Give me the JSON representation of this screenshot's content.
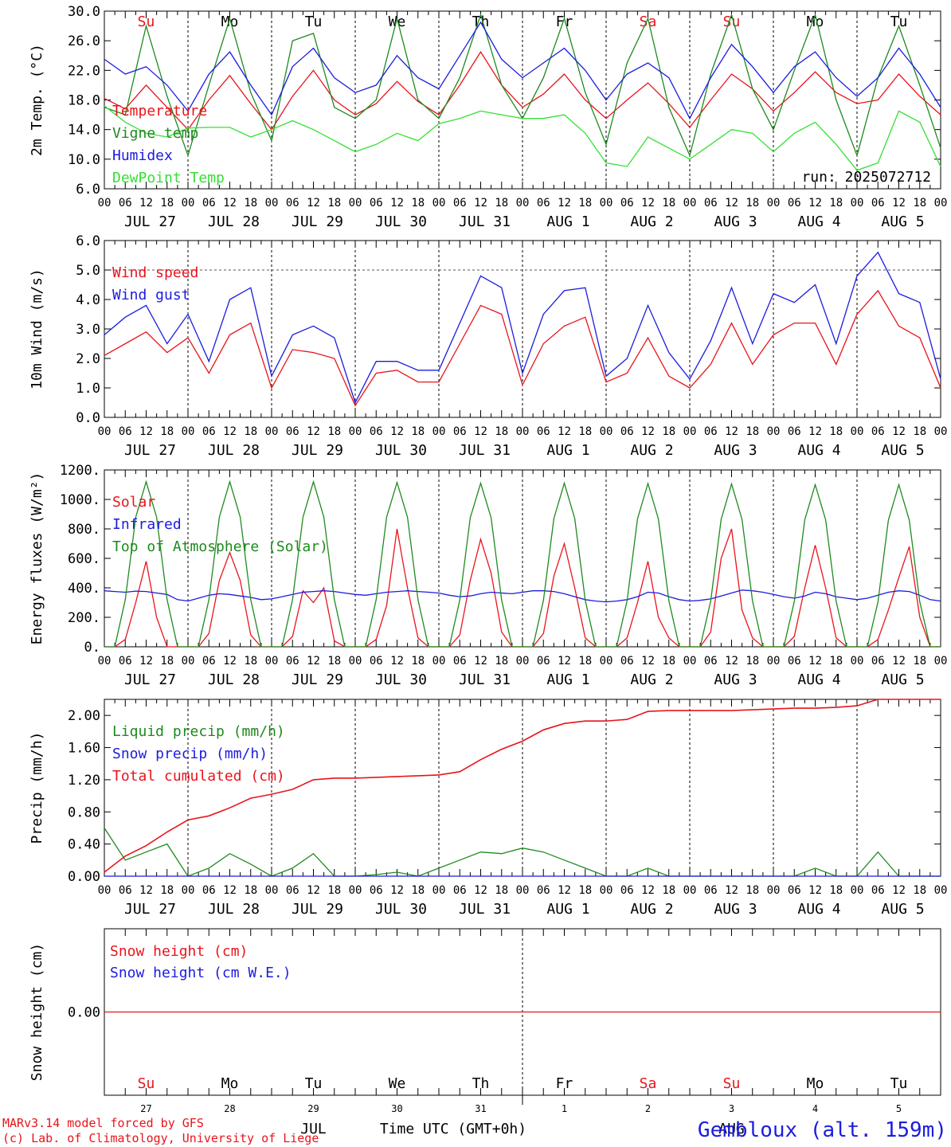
{
  "colors": {
    "red": "#e8141c",
    "green": "#1e8a1e",
    "blue": "#1c1ce0",
    "lightgreen": "#34e034",
    "black": "#000000"
  },
  "days": [
    {
      "abbr": "Su",
      "weekend": true,
      "date": "JUL 27",
      "num": "27"
    },
    {
      "abbr": "Mo",
      "weekend": false,
      "date": "JUL 28",
      "num": "28"
    },
    {
      "abbr": "Tu",
      "weekend": false,
      "date": "JUL 29",
      "num": "29"
    },
    {
      "abbr": "We",
      "weekend": false,
      "date": "JUL 30",
      "num": "30"
    },
    {
      "abbr": "Th",
      "weekend": false,
      "date": "JUL 31",
      "num": "31"
    },
    {
      "abbr": "Fr",
      "weekend": false,
      "date": "AUG  1",
      "num": "1"
    },
    {
      "abbr": "Sa",
      "weekend": true,
      "date": "AUG  2",
      "num": "2"
    },
    {
      "abbr": "Su",
      "weekend": true,
      "date": "AUG  3",
      "num": "3"
    },
    {
      "abbr": "Mo",
      "weekend": false,
      "date": "AUG  4",
      "num": "4"
    },
    {
      "abbr": "Tu",
      "weekend": false,
      "date": "AUG  5",
      "num": "5"
    }
  ],
  "hour_labels": [
    "00",
    "06",
    "12",
    "18"
  ],
  "final_hour_label": "00",
  "footer": {
    "month_jul": "JUL",
    "month_aug": "AUG",
    "time_label": "Time UTC (GMT+0h)",
    "model_line1": "MARv3.14 model forced by GFS",
    "model_line2": "(c) Lab. of Climatology, University of Liege",
    "station": "Gembloux (alt. 159m)"
  },
  "chart_data": [
    {
      "type": "line",
      "ylabel": "2m Temp. (°C)",
      "ylim": [
        6,
        30
      ],
      "yticks": [
        "6.0",
        "10.0",
        "14.0",
        "18.0",
        "22.0",
        "26.0",
        "30.0"
      ],
      "annotation": "run: 2025072712",
      "x_hours": [
        0,
        6,
        12,
        18,
        24,
        30,
        36,
        42,
        48,
        54,
        60,
        66,
        72,
        78,
        84,
        90,
        96,
        102,
        108,
        114,
        120,
        126,
        132,
        138,
        144,
        150,
        156,
        162,
        168,
        174,
        180,
        186,
        192,
        198,
        204,
        210,
        216,
        222,
        228,
        234,
        240
      ],
      "series": [
        {
          "name": "Temperature",
          "color": "red",
          "values": [
            18.2,
            16.8,
            20.0,
            17.0,
            14.0,
            18.0,
            21.3,
            17.5,
            14.0,
            18.5,
            22.0,
            18.0,
            16.0,
            17.5,
            20.5,
            17.8,
            16.0,
            20.0,
            24.5,
            20.0,
            17.0,
            18.8,
            21.5,
            18.0,
            15.5,
            18.0,
            20.3,
            17.5,
            14.3,
            18.0,
            21.5,
            19.5,
            16.5,
            19.0,
            21.8,
            19.0,
            17.5,
            18.0,
            21.5,
            18.5,
            16.0
          ]
        },
        {
          "name": "Vigne temp",
          "color": "green",
          "values": [
            17.0,
            16.0,
            28.0,
            18.5,
            10.5,
            20.0,
            29.0,
            19.0,
            12.5,
            26.0,
            27.0,
            17.0,
            15.5,
            18.0,
            29.0,
            18.0,
            15.5,
            21.0,
            29.5,
            20.0,
            15.5,
            21.0,
            29.0,
            19.0,
            12.0,
            23.0,
            29.0,
            17.0,
            10.5,
            21.5,
            29.5,
            19.5,
            14.0,
            22.0,
            29.5,
            18.0,
            10.5,
            21.0,
            28.0,
            20.0,
            11.5
          ]
        },
        {
          "name": "Humidex",
          "color": "blue",
          "values": [
            23.5,
            21.5,
            22.5,
            20.0,
            16.5,
            21.5,
            24.5,
            20.0,
            16.0,
            22.5,
            25.0,
            21.0,
            19.0,
            20.0,
            24.0,
            21.0,
            19.5,
            24.0,
            28.5,
            23.5,
            21.0,
            23.0,
            25.0,
            22.0,
            18.0,
            21.5,
            23.0,
            21.0,
            15.5,
            21.0,
            25.5,
            22.5,
            19.0,
            22.5,
            24.5,
            21.0,
            18.5,
            21.0,
            25.0,
            21.5,
            17.0
          ]
        },
        {
          "name": "DewPoint Temp",
          "color": "lightgreen",
          "values": [
            17.2,
            15.0,
            13.5,
            13.0,
            14.2,
            14.3,
            14.3,
            13.0,
            14.0,
            15.2,
            14.0,
            12.5,
            11.0,
            12.0,
            13.5,
            12.5,
            14.8,
            15.5,
            16.5,
            16.0,
            15.5,
            15.5,
            16.0,
            13.5,
            9.5,
            9.0,
            13.0,
            11.5,
            10.0,
            12.0,
            14.0,
            13.5,
            11.0,
            13.5,
            15.0,
            12.0,
            8.5,
            9.5,
            16.5,
            15.0,
            9.0
          ]
        }
      ]
    },
    {
      "type": "line",
      "ylabel": "10m Wind (m/s)",
      "ylim": [
        0,
        6
      ],
      "yticks": [
        "0.0",
        "1.0",
        "2.0",
        "3.0",
        "4.0",
        "5.0",
        "6.0"
      ],
      "reference_line": 5,
      "x_hours": [
        0,
        6,
        12,
        18,
        24,
        30,
        36,
        42,
        48,
        54,
        60,
        66,
        72,
        78,
        84,
        90,
        96,
        102,
        108,
        114,
        120,
        126,
        132,
        138,
        144,
        150,
        156,
        162,
        168,
        174,
        180,
        186,
        192,
        198,
        204,
        210,
        216,
        222,
        228,
        234,
        240
      ],
      "series": [
        {
          "name": "Wind speed",
          "color": "red",
          "values": [
            2.1,
            2.5,
            2.9,
            2.2,
            2.7,
            1.5,
            2.8,
            3.2,
            1.0,
            2.3,
            2.2,
            2.0,
            0.4,
            1.5,
            1.6,
            1.2,
            1.2,
            2.5,
            3.8,
            3.5,
            1.1,
            2.5,
            3.1,
            3.4,
            1.2,
            1.5,
            2.7,
            1.4,
            1.0,
            1.8,
            3.2,
            1.8,
            2.8,
            3.2,
            3.2,
            1.8,
            3.5,
            4.3,
            3.1,
            2.7,
            1.0
          ]
        },
        {
          "name": "Wind gust",
          "color": "blue",
          "values": [
            2.8,
            3.4,
            3.8,
            2.5,
            3.5,
            1.9,
            4.0,
            4.4,
            1.4,
            2.8,
            3.1,
            2.7,
            0.5,
            1.9,
            1.9,
            1.6,
            1.6,
            3.2,
            4.8,
            4.4,
            1.5,
            3.5,
            4.3,
            4.4,
            1.4,
            2.0,
            3.8,
            2.2,
            1.3,
            2.6,
            4.4,
            2.5,
            4.2,
            3.9,
            4.5,
            2.5,
            4.8,
            5.6,
            4.2,
            3.9,
            1.3
          ]
        }
      ]
    },
    {
      "type": "line",
      "ylabel": "Energy fluxes (W/m²)",
      "ylim": [
        0,
        1200
      ],
      "yticks": [
        "0.",
        "200.",
        "400.",
        "600.",
        "800.",
        "1000.",
        "1200."
      ],
      "x_hours": [
        0,
        3,
        6,
        9,
        12,
        15,
        18,
        21,
        24,
        27,
        30,
        33,
        36,
        39,
        42,
        45,
        48,
        51,
        54,
        57,
        60,
        63,
        66,
        69,
        72,
        75,
        78,
        81,
        84,
        87,
        90,
        93,
        96,
        99,
        102,
        105,
        108,
        111,
        114,
        117,
        120,
        123,
        126,
        129,
        132,
        135,
        138,
        141,
        144,
        147,
        150,
        153,
        156,
        159,
        162,
        165,
        168,
        171,
        174,
        177,
        180,
        183,
        186,
        189,
        192,
        195,
        198,
        201,
        204,
        207,
        210,
        213,
        216,
        219,
        222,
        225,
        228,
        231,
        234,
        237,
        240
      ],
      "series": [
        {
          "name": "Solar",
          "color": "red",
          "values": [
            0,
            0,
            50,
            300,
            580,
            200,
            0,
            0,
            0,
            0,
            90,
            450,
            640,
            450,
            80,
            0,
            0,
            0,
            70,
            380,
            300,
            400,
            40,
            0,
            0,
            0,
            50,
            280,
            800,
            400,
            60,
            0,
            0,
            0,
            80,
            450,
            730,
            500,
            100,
            0,
            0,
            0,
            90,
            480,
            700,
            400,
            60,
            0,
            0,
            0,
            60,
            300,
            580,
            200,
            60,
            0,
            0,
            0,
            100,
            600,
            800,
            250,
            60,
            0,
            0,
            0,
            70,
            400,
            690,
            400,
            60,
            0,
            0,
            0,
            50,
            250,
            470,
            680,
            200,
            0,
            0
          ]
        },
        {
          "name": "Infrared",
          "color": "blue",
          "values": [
            380,
            375,
            370,
            378,
            375,
            365,
            355,
            320,
            310,
            330,
            350,
            360,
            355,
            345,
            335,
            320,
            325,
            340,
            355,
            370,
            375,
            380,
            375,
            365,
            355,
            350,
            360,
            370,
            375,
            380,
            375,
            370,
            365,
            350,
            340,
            345,
            360,
            370,
            365,
            360,
            370,
            380,
            380,
            375,
            360,
            340,
            320,
            310,
            305,
            310,
            320,
            340,
            370,
            365,
            340,
            320,
            310,
            315,
            325,
            345,
            365,
            385,
            380,
            370,
            355,
            340,
            330,
            345,
            370,
            360,
            340,
            330,
            320,
            330,
            350,
            370,
            380,
            375,
            350,
            320,
            310
          ]
        },
        {
          "name": "Top of Atmosphere (Solar)",
          "color": "green",
          "values": [
            0,
            0,
            320,
            880,
            1120,
            880,
            320,
            0,
            0,
            0,
            320,
            880,
            1120,
            880,
            320,
            0,
            0,
            0,
            320,
            880,
            1120,
            880,
            320,
            0,
            0,
            0,
            320,
            880,
            1115,
            880,
            320,
            0,
            0,
            0,
            318,
            875,
            1110,
            875,
            318,
            0,
            0,
            0,
            315,
            870,
            1110,
            870,
            315,
            0,
            0,
            0,
            312,
            868,
            1108,
            868,
            312,
            0,
            0,
            0,
            310,
            865,
            1105,
            865,
            310,
            0,
            0,
            0,
            308,
            862,
            1100,
            862,
            308,
            0,
            0,
            0,
            305,
            860,
            1100,
            860,
            305,
            0,
            0
          ]
        }
      ]
    },
    {
      "type": "line",
      "ylabel": "Precip (mm/h)",
      "ylim": [
        0,
        2.2
      ],
      "yticks": [
        "0.00",
        "0.40",
        "0.80",
        "1.20",
        "1.60",
        "2.00"
      ],
      "x_hours": [
        0,
        6,
        12,
        18,
        24,
        30,
        36,
        42,
        48,
        54,
        60,
        66,
        72,
        78,
        84,
        90,
        96,
        102,
        108,
        114,
        120,
        126,
        132,
        138,
        144,
        150,
        156,
        162,
        168,
        174,
        180,
        186,
        192,
        198,
        204,
        210,
        216,
        222,
        228,
        234,
        240
      ],
      "series": [
        {
          "name": "Liquid precip (mm/h)",
          "color": "green",
          "values": [
            0.6,
            0.2,
            0.3,
            0.4,
            0.0,
            0.1,
            0.28,
            0.15,
            0.0,
            0.1,
            0.28,
            0.0,
            0.0,
            0.02,
            0.05,
            0.0,
            0.1,
            0.2,
            0.3,
            0.28,
            0.35,
            0.3,
            0.2,
            0.1,
            0.0,
            0.0,
            0.1,
            0.0,
            0.0,
            0.0,
            0.0,
            0.0,
            0.0,
            0.0,
            0.1,
            0.0,
            0.0,
            0.3,
            0.0,
            0.0,
            0.0
          ]
        },
        {
          "name": "Snow precip (mm/h)",
          "color": "blue",
          "values": [
            0,
            0,
            0,
            0,
            0,
            0,
            0,
            0,
            0,
            0,
            0,
            0,
            0,
            0,
            0,
            0,
            0,
            0,
            0,
            0,
            0,
            0,
            0,
            0,
            0,
            0,
            0,
            0,
            0,
            0,
            0,
            0,
            0,
            0,
            0,
            0,
            0,
            0,
            0,
            0,
            0
          ]
        },
        {
          "name": "Total cumulated (cm)",
          "color": "red",
          "values": [
            0.05,
            0.25,
            0.38,
            0.55,
            0.7,
            0.75,
            0.85,
            0.97,
            1.02,
            1.08,
            1.2,
            1.22,
            1.22,
            1.23,
            1.24,
            1.25,
            1.26,
            1.3,
            1.45,
            1.58,
            1.68,
            1.82,
            1.9,
            1.93,
            1.93,
            1.95,
            2.05,
            2.06,
            2.06,
            2.06,
            2.06,
            2.07,
            2.08,
            2.09,
            2.09,
            2.1,
            2.12,
            2.2,
            2.2,
            2.2,
            2.2
          ]
        }
      ]
    },
    {
      "type": "line",
      "ylabel": "Snow height (cm)",
      "ylim": [
        -1,
        1
      ],
      "yticks": [
        "0.00"
      ],
      "x_hours": [
        0,
        240
      ],
      "series": [
        {
          "name": "Snow height (cm)",
          "color": "red",
          "values": [
            0,
            0
          ]
        },
        {
          "name": "Snow height (cm W.E.)",
          "color": "blue",
          "values": [
            0,
            0
          ]
        }
      ]
    }
  ]
}
